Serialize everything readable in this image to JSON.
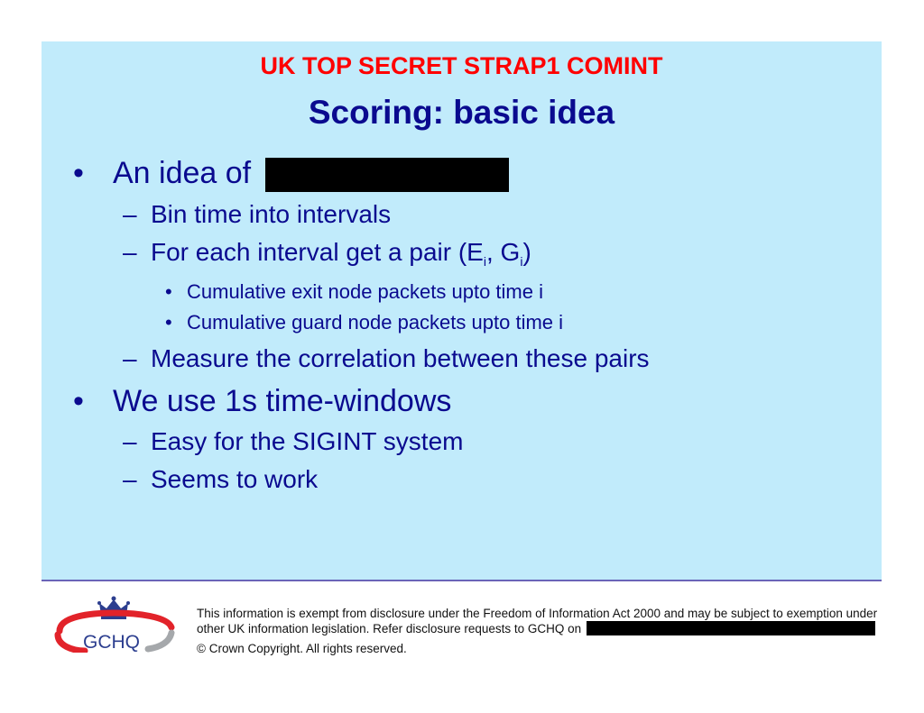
{
  "header": {
    "classification": "UK TOP SECRET STRAP1 COMINT",
    "title": "Scoring: basic idea"
  },
  "bullets": {
    "b1": "An idea of",
    "b1_1": "Bin time into intervals",
    "b1_2_pre": "For each interval get a pair (E",
    "b1_2_sub1": "i",
    "b1_2_mid": ", G",
    "b1_2_sub2": "i",
    "b1_2_post": ")",
    "b1_2_1": "Cumulative exit node packets upto time i",
    "b1_2_2": "Cumulative guard node packets upto time i",
    "b1_3": "Measure the correlation between these pairs",
    "b2": "We use 1s time-windows",
    "b2_1": "Easy for the SIGINT system",
    "b2_2": "Seems to work"
  },
  "markers": {
    "bullet": "•",
    "dash": "–"
  },
  "footer": {
    "line1": "This information is exempt from disclosure under the Freedom of Information Act 2000 and may be subject to exemption under",
    "line2": "other UK information legislation. Refer disclosure requests to GCHQ on",
    "copyright": "© Crown Copyright. All rights reserved.",
    "logo_text": "GCHQ"
  },
  "colors": {
    "slide_background": "#c1ebfb",
    "classification": "#ff0000",
    "body_text": "#0a0a8f",
    "redaction": "#000000"
  }
}
